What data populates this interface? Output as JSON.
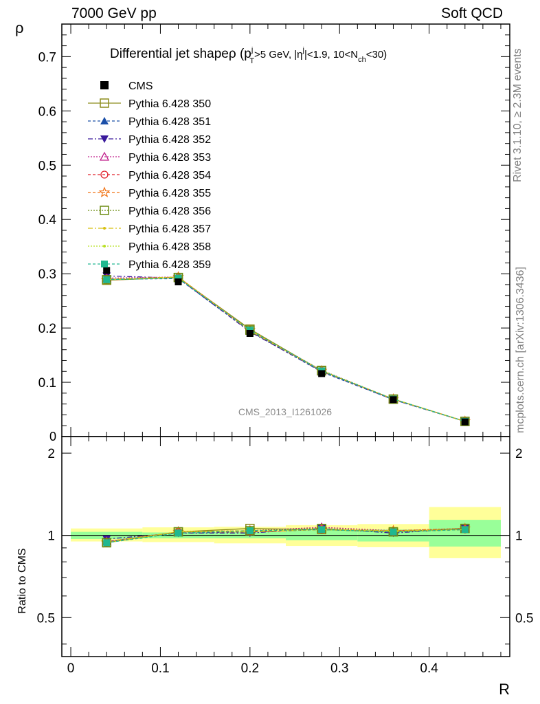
{
  "header": {
    "left": "7000 GeV pp",
    "right": "Soft QCD"
  },
  "side_labels": {
    "rivet": "Rivet 3.1.10, ≥ 2.3M events",
    "mcplots": "mcplots.cern.ch [arXiv:1306.3436]"
  },
  "watermark": "CMS_2013_I1261026",
  "chart_data": [
    {
      "type": "line",
      "title": "Differential jet shapeρ (p_T^j>5 GeV, |η^j|<1.9, 10<N_ch<30)",
      "title_parts": {
        "main": "Differential jet shapeρ (p",
        "sup1": "j",
        "sub1": "T",
        "p2": ">5 GeV, |η",
        "sup2": "j",
        "p3": "|<1.9, 10<N",
        "sub2": "ch",
        "p4": "<30)"
      },
      "ylabel": "ρ",
      "xlabel": "R",
      "xlim": [
        -0.01,
        0.49
      ],
      "ylim": [
        0,
        0.76
      ],
      "yticks": [
        0.1,
        0.2,
        0.3,
        0.4,
        0.5,
        0.6,
        0.7
      ],
      "ytick_labels": [
        "0.1",
        "0.2",
        "0.3",
        "0.4",
        "0.5",
        "0.6",
        "0.7"
      ],
      "y_zero_label": "0",
      "x": [
        0.04,
        0.12,
        0.2,
        0.28,
        0.36,
        0.44
      ],
      "data": {
        "name": "CMS",
        "values": [
          0.306,
          0.285,
          0.19,
          0.116,
          0.068,
          0.027
        ],
        "errors": [
          0.003,
          0.003,
          0.002,
          0.002,
          0.001,
          0.001
        ]
      },
      "series": [
        {
          "name": "Pythia 6.428 350",
          "color": "#8c8c1a",
          "dash": "",
          "marker": "open-square",
          "values": [
            0.288,
            0.293,
            0.198,
            0.121,
            0.069,
            0.028
          ]
        },
        {
          "name": "Pythia 6.428 351",
          "color": "#1b4fa8",
          "dash": "4,3",
          "marker": "triangle-up",
          "values": [
            0.29,
            0.291,
            0.194,
            0.119,
            0.068,
            0.028
          ]
        },
        {
          "name": "Pythia 6.428 352",
          "color": "#3a1a9c",
          "dash": "7,3,2,3",
          "marker": "triangle-down",
          "values": [
            0.296,
            0.292,
            0.193,
            0.12,
            0.068,
            0.028
          ]
        },
        {
          "name": "Pythia 6.428 353",
          "color": "#c0208c",
          "dash": "2,2",
          "marker": "open-triangle",
          "values": [
            0.292,
            0.294,
            0.196,
            0.122,
            0.069,
            0.028
          ]
        },
        {
          "name": "Pythia 6.428 354",
          "color": "#e0202a",
          "dash": "4,3",
          "marker": "open-circle",
          "values": [
            0.289,
            0.293,
            0.195,
            0.121,
            0.069,
            0.028
          ]
        },
        {
          "name": "Pythia 6.428 355",
          "color": "#f07010",
          "dash": "4,3",
          "marker": "open-star",
          "values": [
            0.288,
            0.294,
            0.196,
            0.121,
            0.069,
            0.028
          ]
        },
        {
          "name": "Pythia 6.428 356",
          "color": "#6b8c10",
          "dash": "2,2",
          "marker": "open-square",
          "values": [
            0.289,
            0.293,
            0.196,
            0.122,
            0.069,
            0.028
          ]
        },
        {
          "name": "Pythia 6.428 357",
          "color": "#d8c010",
          "dash": "7,3,2,3",
          "marker": "small-dot",
          "values": [
            0.29,
            0.294,
            0.195,
            0.121,
            0.069,
            0.028
          ]
        },
        {
          "name": "Pythia 6.428 358",
          "color": "#b8e020",
          "dash": "2,2",
          "marker": "small-dot",
          "values": [
            0.289,
            0.293,
            0.196,
            0.121,
            0.069,
            0.028
          ]
        },
        {
          "name": "Pythia 6.428 359",
          "color": "#20b890",
          "dash": "4,3",
          "marker": "filled-square",
          "values": [
            0.289,
            0.292,
            0.196,
            0.121,
            0.069,
            0.028
          ]
        }
      ]
    },
    {
      "type": "line",
      "title": "",
      "ylabel": "Ratio to CMS",
      "xlabel": "R",
      "xlim": [
        -0.01,
        0.49
      ],
      "ylim": [
        0.36,
        2.3
      ],
      "y_scale": "log",
      "yticks": [
        0.5,
        1,
        2
      ],
      "ytick_labels": [
        "0.5",
        "1",
        "2"
      ],
      "xticks": [
        0,
        0.1,
        0.2,
        0.3,
        0.4
      ],
      "xtick_labels": [
        "0",
        "0.1",
        "0.2",
        "0.3",
        "0.4"
      ],
      "bands": {
        "x_edges": [
          0.0,
          0.08,
          0.16,
          0.24,
          0.32,
          0.4,
          0.48
        ],
        "green_low": [
          0.97,
          0.975,
          0.975,
          0.96,
          0.95,
          0.91
        ],
        "green_high": [
          1.03,
          1.025,
          1.03,
          1.045,
          1.05,
          1.14
        ],
        "yellow_low": [
          0.95,
          0.945,
          0.935,
          0.915,
          0.905,
          0.825
        ],
        "yellow_high": [
          1.06,
          1.07,
          1.075,
          1.09,
          1.1,
          1.27
        ],
        "green_color": "#99ff99",
        "yellow_color": "#ffff99"
      },
      "series": [
        {
          "name": "Pythia 6.428 350",
          "values": [
            0.94,
            1.03,
            1.06,
            1.05,
            1.03,
            1.06
          ]
        },
        {
          "name": "Pythia 6.428 351",
          "values": [
            0.95,
            1.02,
            1.03,
            1.05,
            1.03,
            1.05
          ]
        },
        {
          "name": "Pythia 6.428 352",
          "values": [
            0.97,
            1.02,
            1.02,
            1.06,
            1.02,
            1.06
          ]
        },
        {
          "name": "Pythia 6.428 353",
          "values": [
            0.95,
            1.03,
            1.04,
            1.07,
            1.04,
            1.06
          ]
        },
        {
          "name": "Pythia 6.428 354",
          "values": [
            0.94,
            1.03,
            1.03,
            1.05,
            1.03,
            1.05
          ]
        },
        {
          "name": "Pythia 6.428 355",
          "values": [
            0.94,
            1.03,
            1.04,
            1.05,
            1.04,
            1.06
          ]
        },
        {
          "name": "Pythia 6.428 356",
          "values": [
            0.94,
            1.03,
            1.04,
            1.06,
            1.03,
            1.06
          ]
        },
        {
          "name": "Pythia 6.428 357",
          "values": [
            0.95,
            1.03,
            1.03,
            1.05,
            1.04,
            1.05
          ]
        },
        {
          "name": "Pythia 6.428 358",
          "values": [
            0.94,
            1.03,
            1.04,
            1.05,
            1.03,
            1.05
          ]
        },
        {
          "name": "Pythia 6.428 359",
          "values": [
            0.94,
            1.02,
            1.04,
            1.05,
            1.03,
            1.05
          ]
        }
      ]
    }
  ]
}
